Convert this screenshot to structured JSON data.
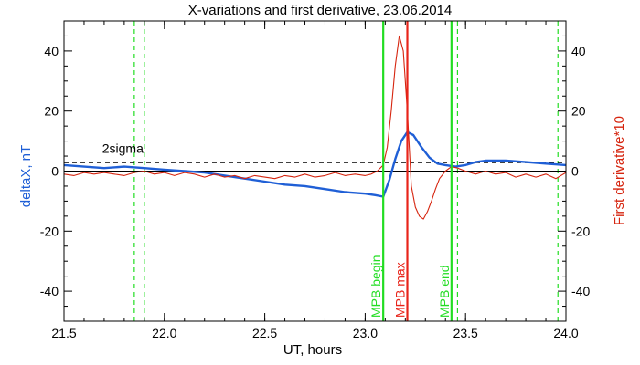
{
  "chart_data": {
    "type": "line",
    "title": "X-variations and first derivative, 23.06.2014",
    "xlabel": "UT, hours",
    "ylabel_left": "deltaX, nT",
    "ylabel_right": "First derivative*10",
    "xlim": [
      21.5,
      24.0
    ],
    "ylim_left": [
      -50,
      50
    ],
    "ylim_right": [
      -50,
      50
    ],
    "x_ticks": [
      21.5,
      22.0,
      22.5,
      23.0,
      23.5,
      24.0
    ],
    "x_tick_labels": [
      "21.5",
      "22.0",
      "22.5",
      "23.0",
      "23.5",
      "24.0"
    ],
    "y_ticks": [
      -40,
      -20,
      0,
      20,
      40
    ],
    "y_tick_labels": [
      "-40",
      "-20",
      "0",
      "20",
      "40"
    ],
    "colors": {
      "deltaX": "#1f5fd6",
      "derivative": "#d6250f",
      "boundary": "#22dd22",
      "max_line": "#e8241a",
      "threshold": "#000000"
    },
    "threshold": {
      "label": "2sigma",
      "value": 2.8
    },
    "zero_line": 0,
    "vertical_lines": [
      {
        "x": 23.09,
        "label": "MPB begin",
        "color": "#22dd22",
        "style": "solid"
      },
      {
        "x": 23.21,
        "label": "MPB max",
        "color": "#e8241a",
        "style": "solid"
      },
      {
        "x": 23.43,
        "label": "MPB end",
        "color": "#22dd22",
        "style": "solid"
      }
    ],
    "dashed_markers": [
      21.85,
      21.9,
      23.46,
      23.96
    ],
    "series": [
      {
        "key": "deltaX",
        "x": [
          21.5,
          21.6,
          21.7,
          21.8,
          21.9,
          22.0,
          22.1,
          22.2,
          22.3,
          22.4,
          22.5,
          22.6,
          22.7,
          22.8,
          22.9,
          23.0,
          23.05,
          23.09,
          23.12,
          23.15,
          23.18,
          23.21,
          23.24,
          23.28,
          23.32,
          23.36,
          23.4,
          23.45,
          23.5,
          23.55,
          23.6,
          23.7,
          23.8,
          23.9,
          24.0
        ],
        "y": [
          2.0,
          1.5,
          1.0,
          1.5,
          1.0,
          0.5,
          0.0,
          -0.5,
          -1.5,
          -2.5,
          -3.5,
          -4.5,
          -5.0,
          -6.0,
          -7.0,
          -7.5,
          -8.0,
          -8.5,
          -3.0,
          4.0,
          10.0,
          13.0,
          12.0,
          8.0,
          4.5,
          2.5,
          2.0,
          1.5,
          2.0,
          3.0,
          3.5,
          3.5,
          3.0,
          2.5,
          2.0
        ]
      },
      {
        "key": "derivative",
        "x": [
          21.5,
          21.55,
          21.6,
          21.65,
          21.7,
          21.75,
          21.8,
          21.85,
          21.9,
          21.95,
          22.0,
          22.05,
          22.1,
          22.15,
          22.2,
          22.25,
          22.3,
          22.35,
          22.4,
          22.45,
          22.5,
          22.55,
          22.6,
          22.65,
          22.7,
          22.75,
          22.8,
          22.85,
          22.9,
          22.95,
          23.0,
          23.03,
          23.06,
          23.09,
          23.11,
          23.13,
          23.15,
          23.17,
          23.19,
          23.21,
          23.23,
          23.25,
          23.27,
          23.29,
          23.31,
          23.33,
          23.35,
          23.37,
          23.4,
          23.43,
          23.46,
          23.5,
          23.55,
          23.6,
          23.65,
          23.7,
          23.75,
          23.8,
          23.85,
          23.9,
          23.95,
          24.0
        ],
        "y": [
          -1.0,
          -1.5,
          -0.5,
          -1.0,
          -0.5,
          -1.0,
          -1.5,
          -0.5,
          0.0,
          -1.0,
          -0.5,
          -1.5,
          -0.5,
          -1.0,
          -2.0,
          -1.0,
          -2.0,
          -1.5,
          -2.5,
          -1.5,
          -2.0,
          -2.5,
          -1.5,
          -2.0,
          -1.0,
          -2.0,
          -1.5,
          -0.5,
          -1.5,
          -1.0,
          -1.5,
          -1.0,
          0.0,
          2.0,
          8.0,
          20.0,
          35.0,
          45.0,
          40.0,
          20.0,
          -5.0,
          -12.0,
          -15.0,
          -16.0,
          -13.5,
          -10.0,
          -6.0,
          -2.5,
          0.0,
          1.5,
          1.0,
          0.0,
          -1.0,
          0.0,
          -1.0,
          -0.5,
          -2.0,
          -1.0,
          -2.0,
          -1.0,
          -2.5,
          -0.5
        ]
      }
    ]
  }
}
